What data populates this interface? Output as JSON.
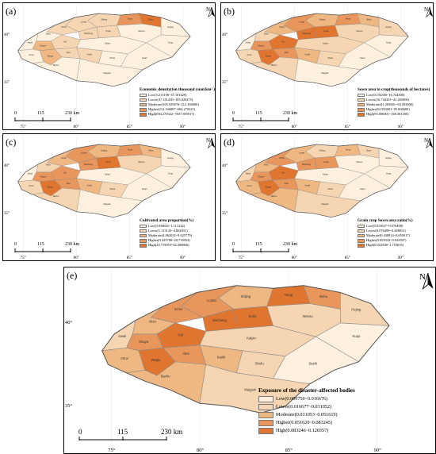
{
  "panels": [
    {
      "label": "(a)",
      "legend_title": "Economic density(ten thousand yuan/km² )",
      "classes": [
        {
          "text": "Low(3.213108~37.101429)",
          "color": "#fdf0de"
        },
        {
          "text": "Lower(37.101430~105.929475)",
          "color": "#f6d6b2"
        },
        {
          "text": "Moderate(105.929476~212.166806)",
          "color": "#efb882"
        },
        {
          "text": "Higher(212.166807~694.270321)",
          "color": "#e8965b"
        },
        {
          "text": "High(694.270322~7657.395917)",
          "color": "#e0752f"
        }
      ]
    },
    {
      "label": "(b)",
      "legend_title": "Sown area to crop(thousands of hectares)",
      "classes": [
        {
          "text": "Low(0.154300~16.744300)",
          "color": "#fdf0de"
        },
        {
          "text": "Lower(16.744301~41.205000)",
          "color": "#f6d6b2"
        },
        {
          "text": "Moderate(41.205001~63.583000)",
          "color": "#efb882"
        },
        {
          "text": "Higher(63.583001~95.006000)",
          "color": "#e8965b"
        },
        {
          "text": "High(95.006001~168.301300)",
          "color": "#e0752f"
        }
      ]
    },
    {
      "label": "(c)",
      "legend_title": "Cultivated area proportion(%)",
      "classes": [
        {
          "text": "Low(0.036652~1.113122)",
          "color": "#fdf0de"
        },
        {
          "text": "Lower(1.113123~4.062031)",
          "color": "#f6d6b2"
        },
        {
          "text": "Moderate(4.062032~9.425779)",
          "color": "#efb882"
        },
        {
          "text": "Higher(9.425780~20.719054)",
          "color": "#e8965b"
        },
        {
          "text": "High(20.719055~44.406866)",
          "color": "#e0752f"
        }
      ]
    },
    {
      "label": "(d)",
      "legend_title": "Grain crop Sown area ratio(%)",
      "classes": [
        {
          "text": "Low(0.013637~0.076498)",
          "color": "#fdf0de"
        },
        {
          "text": "Lower(0.076499~0.438813)",
          "color": "#f6d6b2"
        },
        {
          "text": "Moderate(0.438814~0.655017)",
          "color": "#efb882"
        },
        {
          "text": "Higher(0.655018~0.922507)",
          "color": "#e8965b"
        },
        {
          "text": "High(0.922508~1.718016)",
          "color": "#e0752f"
        }
      ]
    },
    {
      "label": "(e)",
      "legend_title": "Exposure of the disaster-affected bodies",
      "classes": [
        {
          "text": "Low(0.009750~0.016676)",
          "color": "#fdf0de"
        },
        {
          "text": "Lower(0.016677~0.031052)",
          "color": "#f6d6b2"
        },
        {
          "text": "Moderate(0.031053~0.051619)",
          "color": "#efb882"
        },
        {
          "text": "Higher(0.051620~0.083245)",
          "color": "#e8965b"
        },
        {
          "text": "High(0.083246~0.120357)",
          "color": "#e0752f"
        }
      ]
    }
  ],
  "north_label": "N",
  "scale_labels": [
    "0",
    "115",
    "230 km"
  ],
  "lon_ticks": [
    "75°",
    "80°",
    "85°",
    "90°"
  ],
  "lat_ticks": [
    "40°",
    "35°"
  ],
  "place_names": [
    "Shijing",
    "Yanqi",
    "Bohu",
    "Hejing",
    "Luntai",
    "Korla",
    "Baicheng",
    "Wensu",
    "Kuqa",
    "Xinhe",
    "Aksu",
    "Awati",
    "Shaya",
    "Yuli",
    "Kalpin",
    "Artux",
    "Wuqia",
    "Akto",
    "Kashi",
    "Shufu",
    "Jiashi",
    "Bachu",
    "Maigaiti",
    "Yingjisha",
    "Zepu",
    "Yecheng",
    "Shache",
    "Poskam",
    "Moyu",
    "Hotan",
    "Pishan",
    "Qira",
    "Cele",
    "Yutian",
    "Minfeng",
    "Qiemo",
    "Ruoqiang",
    "Tashkurgan",
    "Wuhe",
    "Hanshi"
  ]
}
